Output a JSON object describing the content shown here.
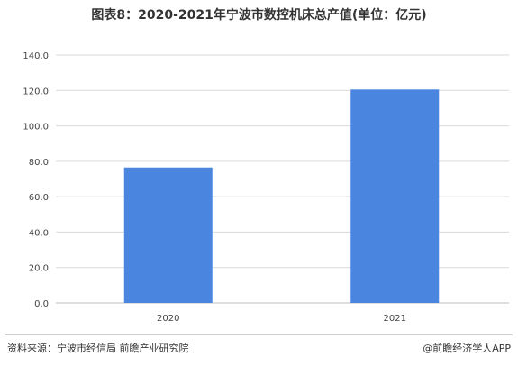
{
  "title": "图表8：2020-2021年宁波市数控机床总产值(单位：亿元)",
  "footer": {
    "source": "资料来源：宁波市经信局 前瞻产业研究院",
    "brand": "@前瞻经济学人APP"
  },
  "colors": {
    "bar": "#4a86e0",
    "grid": "#d9d9d9"
  },
  "chart_data": {
    "type": "bar",
    "title": "图表8：2020-2021年宁波市数控机床总产值(单位：亿元)",
    "categories": [
      "2020",
      "2021"
    ],
    "values": [
      76.5,
      120.5
    ],
    "ylim": [
      0,
      140
    ],
    "yticks": [
      0,
      20,
      40,
      60,
      80,
      100,
      120,
      140
    ],
    "ytick_labels": [
      "0.0",
      "20.0",
      "40.0",
      "60.0",
      "80.0",
      "100.0",
      "120.0",
      "140.0"
    ],
    "grid": true
  }
}
